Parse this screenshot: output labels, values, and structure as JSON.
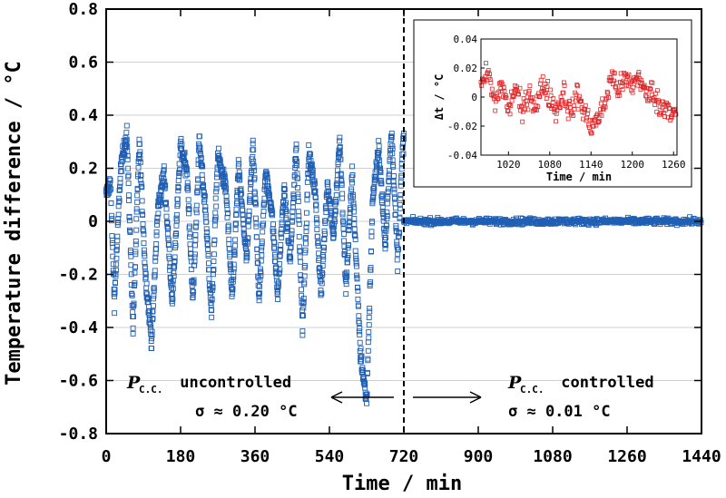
{
  "chart_data": [
    {
      "type": "scatter",
      "title": "",
      "xlabel": "Time / min",
      "ylabel": "Temperature difference / °C",
      "xlim": [
        0,
        1440
      ],
      "ylim": [
        -0.8,
        0.8
      ],
      "xticks": [
        0,
        180,
        360,
        540,
        720,
        900,
        1080,
        1260,
        1440
      ],
      "yticks": [
        -0.8,
        -0.6,
        -0.4,
        -0.2,
        0,
        0.2,
        0.4,
        0.6,
        0.8
      ],
      "ytick_labels": [
        "-0.8",
        "-0.6",
        "-0.4",
        "-0.2",
        "0",
        "0.2",
        "0.4",
        "0.6",
        "0.8"
      ],
      "grid": true,
      "marker": "open-square",
      "series_color": "#1f5fb4",
      "divider_x": 720,
      "series": [
        {
          "name": "uncontrolled",
          "x_range": [
            0,
            720
          ],
          "sigma": 0.2,
          "values_envelope": [
            [
              0,
              0.1
            ],
            [
              10,
              0.15
            ],
            [
              20,
              -0.3
            ],
            [
              35,
              0.2
            ],
            [
              50,
              0.33
            ],
            [
              65,
              -0.4
            ],
            [
              80,
              0.3
            ],
            [
              95,
              -0.2
            ],
            [
              110,
              -0.45
            ],
            [
              125,
              0.05
            ],
            [
              140,
              0.18
            ],
            [
              160,
              -0.3
            ],
            [
              180,
              0.28
            ],
            [
              195,
              0.2
            ],
            [
              210,
              -0.3
            ],
            [
              225,
              0.3
            ],
            [
              240,
              0.05
            ],
            [
              255,
              -0.35
            ],
            [
              270,
              0.25
            ],
            [
              290,
              0.12
            ],
            [
              305,
              -0.3
            ],
            [
              320,
              0.2
            ],
            [
              340,
              -0.15
            ],
            [
              355,
              0.3
            ],
            [
              370,
              -0.3
            ],
            [
              385,
              0.18
            ],
            [
              400,
              0.05
            ],
            [
              415,
              -0.28
            ],
            [
              430,
              0.12
            ],
            [
              445,
              -0.15
            ],
            [
              460,
              0.28
            ],
            [
              475,
              -0.4
            ],
            [
              490,
              0.25
            ],
            [
              505,
              0.12
            ],
            [
              520,
              -0.28
            ],
            [
              535,
              0.15
            ],
            [
              550,
              -0.05
            ],
            [
              565,
              0.3
            ],
            [
              580,
              -0.25
            ],
            [
              595,
              0.18
            ],
            [
              615,
              -0.5
            ],
            [
              630,
              -0.68
            ],
            [
              645,
              0.1
            ],
            [
              660,
              0.27
            ],
            [
              675,
              -0.1
            ],
            [
              690,
              0.35
            ],
            [
              705,
              -0.15
            ],
            [
              718,
              0.3
            ]
          ]
        },
        {
          "name": "controlled",
          "x_range": [
            720,
            1440
          ],
          "sigma": 0.01,
          "values_envelope": [
            [
              720,
              0.0
            ],
            [
              1440,
              0.0
            ]
          ]
        }
      ],
      "annotations": {
        "left_p": "P",
        "left_sub": "C.C.",
        "left_text": " uncontrolled",
        "left_sigma": "σ ≈ 0.20 °C",
        "right_p": "P",
        "right_sub": "C.C.",
        "right_text": " controlled",
        "right_sigma": "σ ≈ 0.01 °C"
      }
    },
    {
      "type": "scatter",
      "title": "",
      "xlabel": "Time / min",
      "ylabel": "Δt / °C",
      "xlim": [
        980,
        1265
      ],
      "ylim": [
        -0.04,
        0.04
      ],
      "xticks": [
        1020,
        1080,
        1140,
        1200,
        1260
      ],
      "yticks": [
        -0.04,
        -0.02,
        0,
        0.02,
        0.04
      ],
      "ytick_labels": [
        "-0.04",
        "-0.02",
        "0",
        "0.02",
        "0.04"
      ],
      "marker": "open-square",
      "series_color": "#e0282a",
      "values_envelope": [
        [
          980,
          0.005
        ],
        [
          990,
          0.018
        ],
        [
          1000,
          -0.005
        ],
        [
          1010,
          0.01
        ],
        [
          1020,
          -0.01
        ],
        [
          1030,
          0.008
        ],
        [
          1040,
          -0.012
        ],
        [
          1050,
          0.005
        ],
        [
          1060,
          -0.008
        ],
        [
          1070,
          0.01
        ],
        [
          1080,
          0.0
        ],
        [
          1090,
          -0.01
        ],
        [
          1100,
          0.005
        ],
        [
          1110,
          -0.012
        ],
        [
          1120,
          0.002
        ],
        [
          1130,
          -0.01
        ],
        [
          1140,
          -0.02
        ],
        [
          1150,
          -0.015
        ],
        [
          1160,
          -0.005
        ],
        [
          1170,
          0.015
        ],
        [
          1180,
          0.005
        ],
        [
          1190,
          0.012
        ],
        [
          1200,
          0.008
        ],
        [
          1210,
          0.015
        ],
        [
          1220,
          0.0
        ],
        [
          1230,
          0.005
        ],
        [
          1240,
          -0.008
        ],
        [
          1250,
          -0.005
        ],
        [
          1260,
          -0.012
        ]
      ]
    }
  ]
}
